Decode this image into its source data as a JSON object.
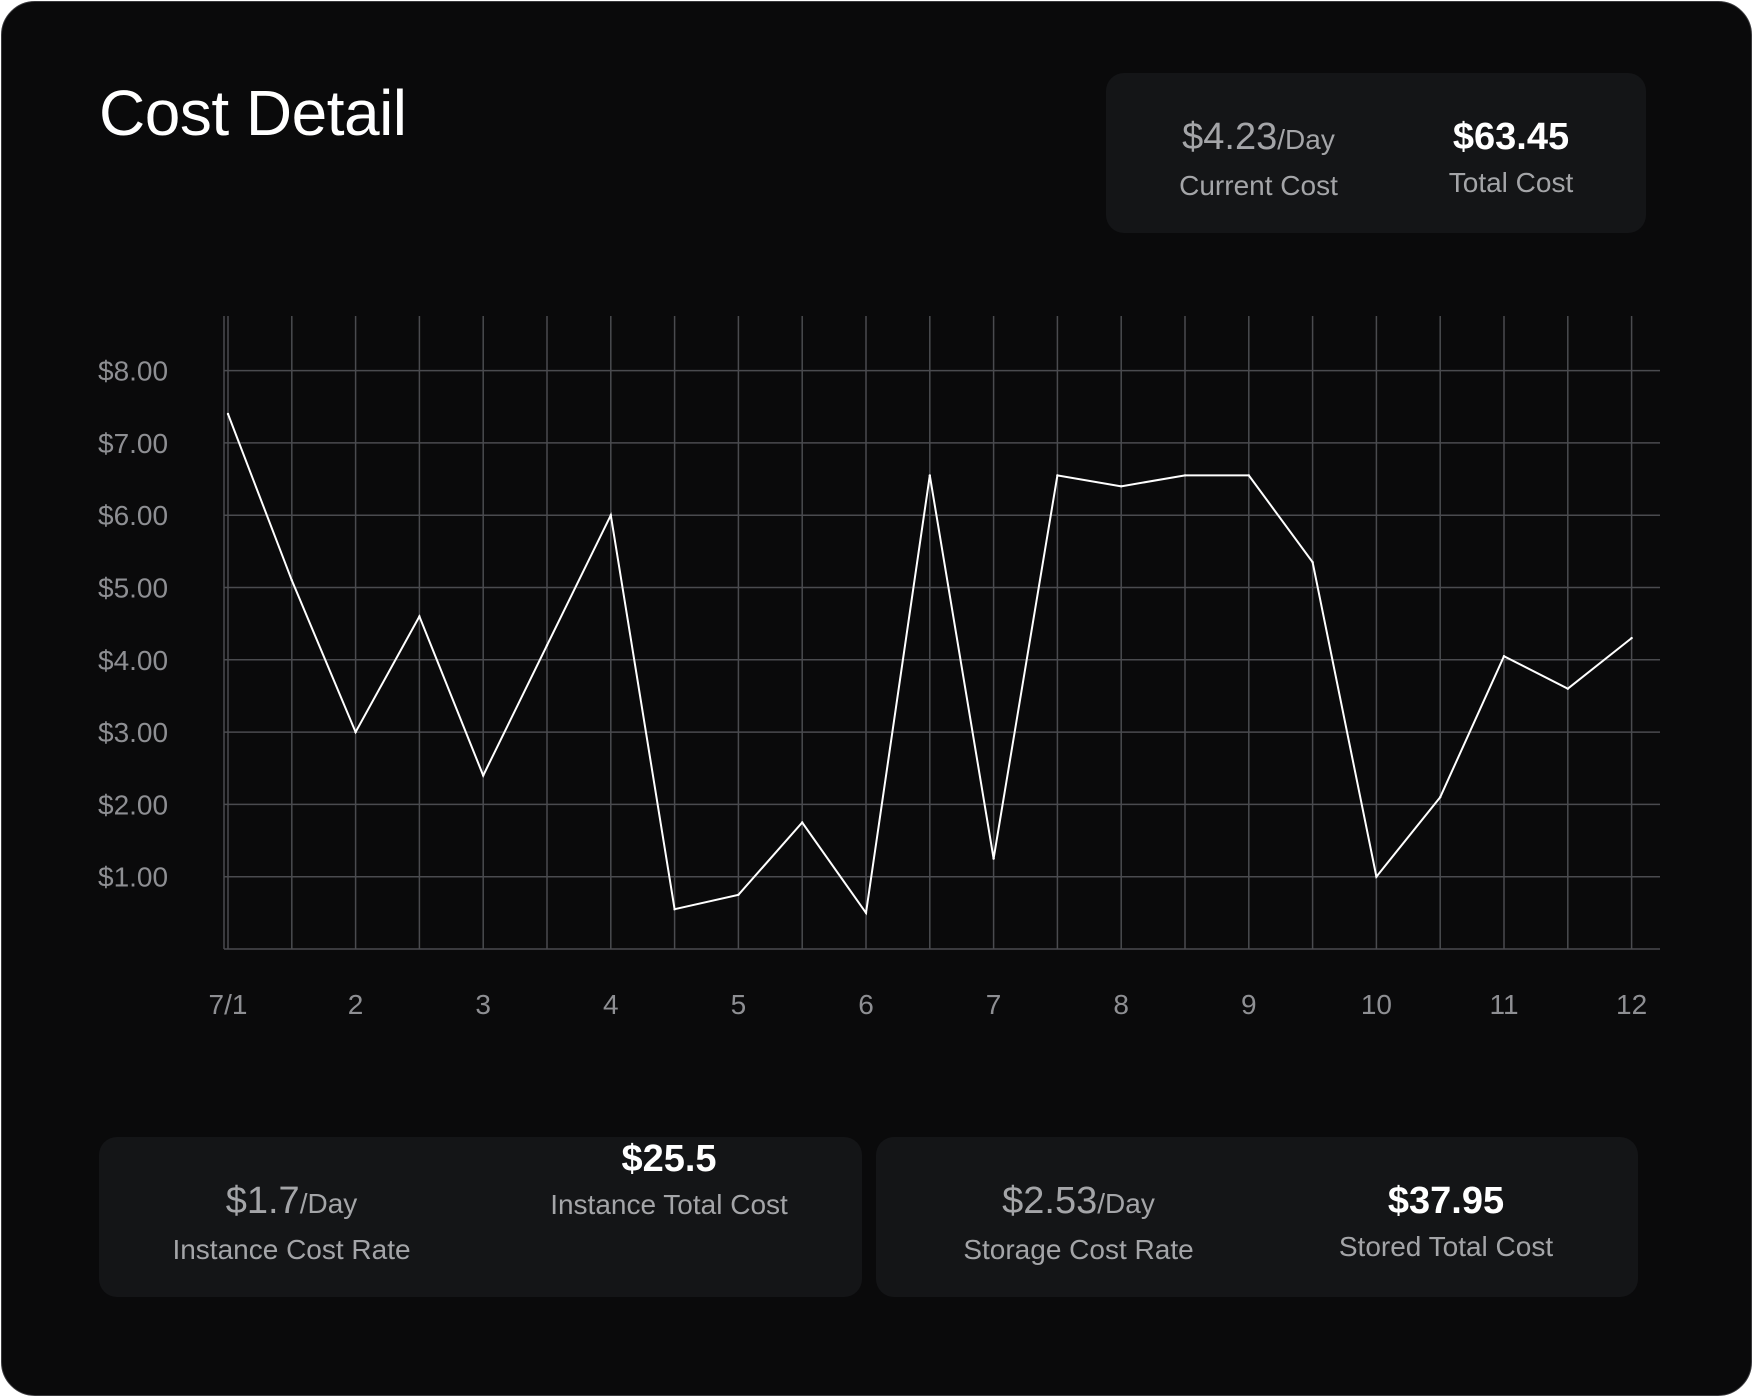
{
  "title": "Cost Detail",
  "summary": {
    "current_rate": "$4.23",
    "current_unit": "/Day",
    "current_label": "Current Cost",
    "total_value": "$63.45",
    "total_label": "Total Cost"
  },
  "breakdown": [
    {
      "rate": "$1.7",
      "unit": "/Day",
      "rate_label": "Instance Cost Rate",
      "total": "$25.5",
      "total_label": "Instance Total Cost"
    },
    {
      "rate": "$2.53",
      "unit": "/Day",
      "rate_label": "Storage Cost Rate",
      "total": "$37.95",
      "total_label": "Stored Total Cost"
    }
  ],
  "chart_data": {
    "type": "line",
    "title": "",
    "xlabel": "",
    "ylabel": "",
    "x_ticks": [
      "7/1",
      "2",
      "3",
      "4",
      "5",
      "6",
      "7",
      "8",
      "9",
      "10",
      "11",
      "12"
    ],
    "y_ticks": [
      "$8.00",
      "$7.00",
      "$6.00",
      "$5.00",
      "$4.00",
      "$3.00",
      "$2.00",
      "$1.00"
    ],
    "ylim": [
      0,
      8.67
    ],
    "x_range": [
      1,
      12.2
    ],
    "grid": true,
    "series": [
      {
        "x": [
          1,
          1.5,
          2,
          2.5,
          3,
          3.5,
          4,
          4.5,
          5,
          5.5,
          6,
          6.5,
          7,
          7.5,
          8,
          8.5,
          9,
          9.5,
          10,
          10.5,
          11,
          11.5,
          12
        ],
        "values": [
          7.4,
          5.1,
          3.0,
          4.6,
          2.4,
          4.2,
          6.0,
          0.55,
          0.75,
          1.75,
          0.5,
          6.55,
          1.25,
          6.55,
          6.4,
          6.55,
          6.55,
          5.35,
          1.0,
          2.1,
          4.05,
          3.6,
          4.3
        ],
        "color": "#ffffff"
      }
    ],
    "colors": {
      "grid": "#4a4b4f",
      "tick_text": "#8e8f93",
      "line": "#ffffff"
    }
  }
}
